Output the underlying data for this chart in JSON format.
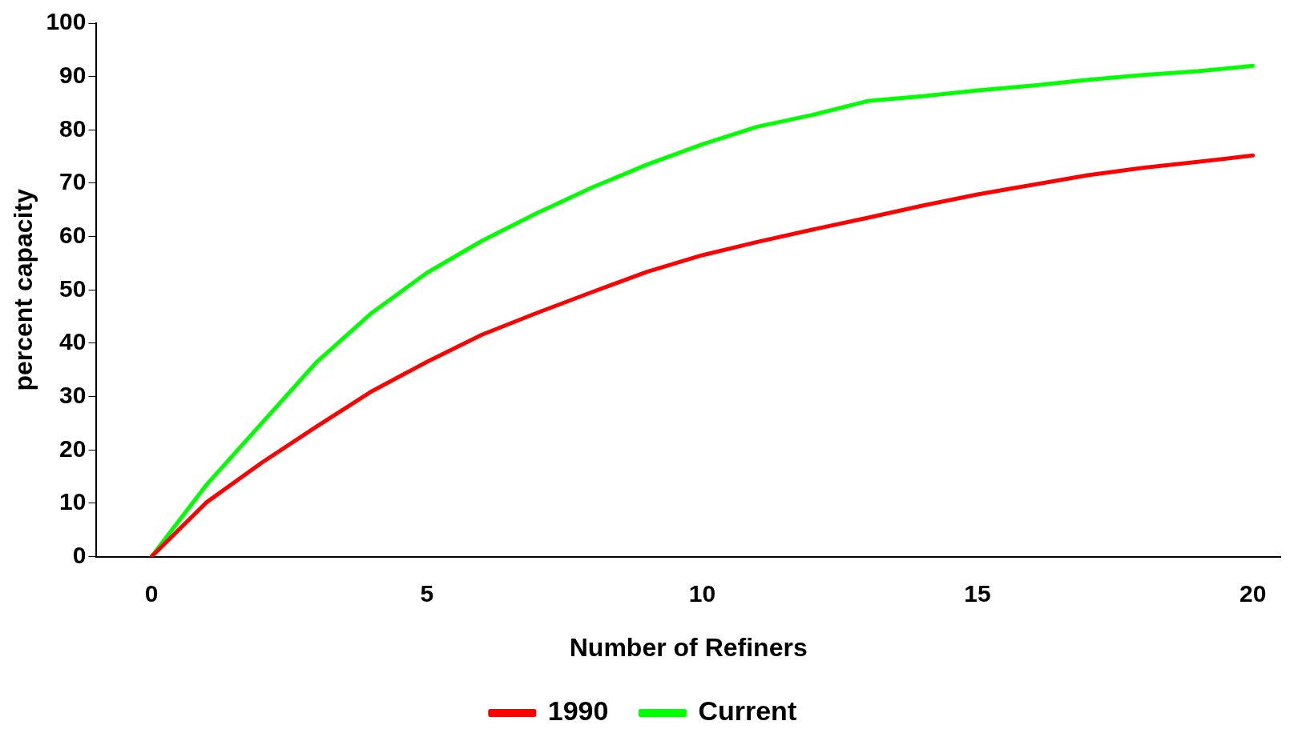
{
  "chart_data": {
    "type": "line",
    "xlabel": "Number of Refiners",
    "ylabel": "percent capacity",
    "x": [
      0,
      1,
      2,
      3,
      4,
      5,
      6,
      7,
      8,
      9,
      10,
      11,
      12,
      13,
      14,
      15,
      16,
      17,
      18,
      19,
      20
    ],
    "series": [
      {
        "name": "1990",
        "color": "#ff0000",
        "values": [
          0,
          10.2,
          17.6,
          24.4,
          31.0,
          36.5,
          41.6,
          45.7,
          49.6,
          53.4,
          56.5,
          59.0,
          61.3,
          63.5,
          65.8,
          67.9,
          69.7,
          71.5,
          72.9,
          74.0,
          75.2
        ]
      },
      {
        "name": "Current",
        "color": "#00ff00",
        "values": [
          0,
          13.5,
          25,
          36.5,
          45.7,
          53.2,
          59.2,
          64.4,
          69.2,
          73.5,
          77.3,
          80.6,
          82.8,
          85.4,
          86.3,
          87.4,
          88.3,
          89.4,
          90.3,
          91.0,
          92.0
        ]
      }
    ],
    "xlim": [
      -1,
      20.5
    ],
    "xticks": [
      0,
      5,
      10,
      15,
      20
    ],
    "ylim": [
      0,
      100
    ],
    "yticks": [
      0,
      10,
      20,
      30,
      40,
      50,
      60,
      70,
      80,
      90,
      100
    ],
    "grid": false,
    "legend": "bottom",
    "marker": "none",
    "line_style": "solid"
  }
}
